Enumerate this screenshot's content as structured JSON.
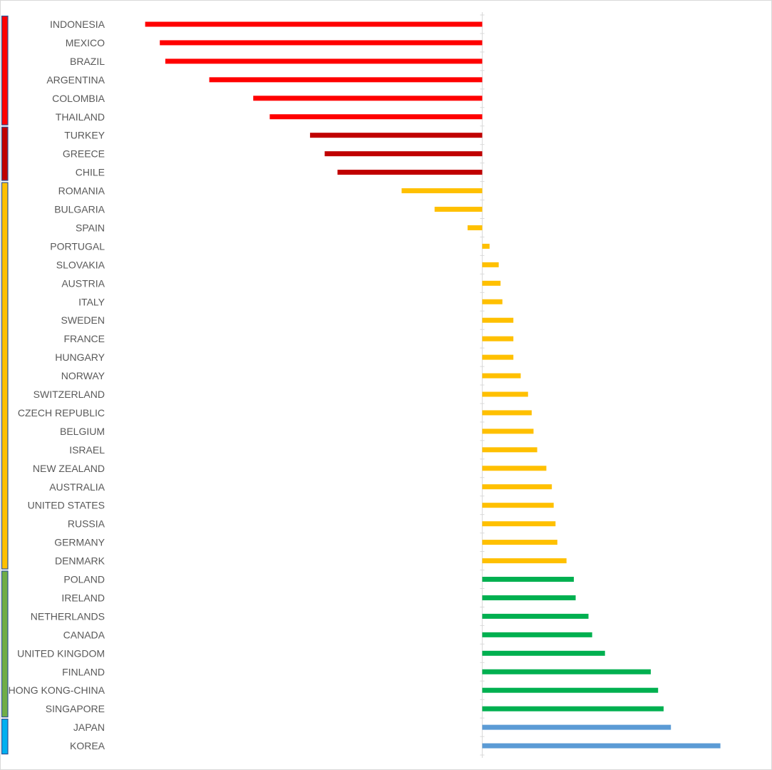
{
  "chart_data": {
    "type": "bar",
    "orientation": "horizontal",
    "title": "",
    "xlabel": "",
    "ylabel": "",
    "value_axis_labels_shown": false,
    "grid": false,
    "legend": "none",
    "categories": [
      "INDONESIA",
      "MEXICO",
      "BRAZIL",
      "ARGENTINA",
      "COLOMBIA",
      "THAILAND",
      "TURKEY",
      "GREECE",
      "CHILE",
      "ROMANIA",
      "BULGARIA",
      "SPAIN",
      "PORTUGAL",
      "SLOVAKIA",
      "AUSTRIA",
      "ITALY",
      "SWEDEN",
      "FRANCE",
      "HUNGARY",
      "NORWAY",
      "SWITZERLAND",
      "CZECH REPUBLIC",
      "BELGIUM",
      "ISRAEL",
      "NEW ZEALAND",
      "AUSTRALIA",
      "UNITED STATES",
      "RUSSIA",
      "GERMANY",
      "DENMARK",
      "POLAND",
      "IRELAND",
      "NETHERLANDS",
      "CANADA",
      "UNITED KINGDOM",
      "FINLAND",
      "HONG KONG-CHINA",
      "SINGAPORE",
      "JAPAN",
      "KOREA"
    ],
    "values": [
      -92,
      -88,
      -86.5,
      -74.5,
      -62.5,
      -58,
      -47,
      -43,
      -39.5,
      -22,
      -13,
      -4,
      2,
      4.5,
      5,
      5.5,
      8.5,
      8.5,
      8.5,
      10.5,
      12.5,
      13.5,
      14,
      15,
      17.5,
      19,
      19.5,
      20,
      20.5,
      23,
      25,
      25.5,
      29,
      30,
      33.5,
      46,
      48,
      49.5,
      51.5,
      65
    ],
    "groups": [
      {
        "color": "#ff0000",
        "start": 0,
        "end": 5
      },
      {
        "color": "#c00000",
        "start": 6,
        "end": 8
      },
      {
        "color": "#ffc000",
        "start": 9,
        "end": 29
      },
      {
        "color": "#00b050",
        "start": 30,
        "end": 37
      },
      {
        "color": "#5b9bd5",
        "start": 38,
        "end": 39
      }
    ],
    "bracket_colors": [
      "#ff0000",
      "#c00000",
      "#ffc000",
      "#70ad47",
      "#00b0f0"
    ],
    "colors": {
      "label": "#595959",
      "axis": "#d9d9d9",
      "bracket_border": "#2f5597"
    }
  }
}
